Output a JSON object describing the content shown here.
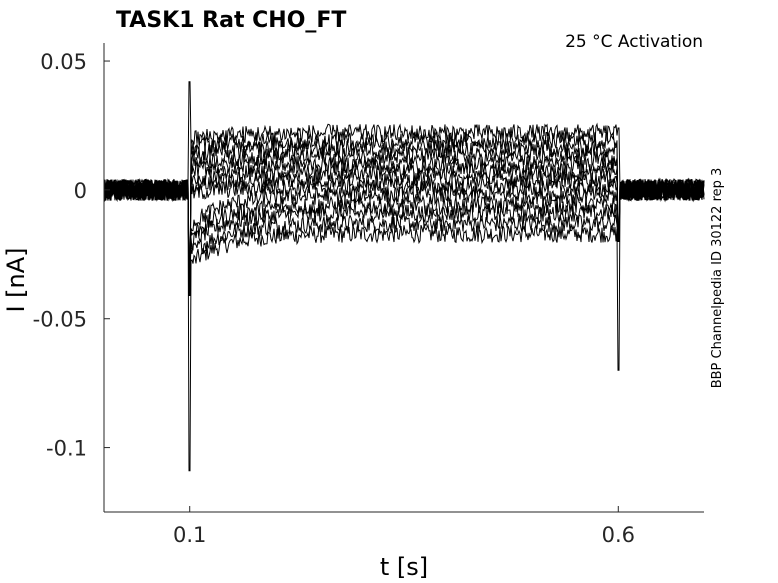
{
  "chart_data": {
    "type": "line",
    "title": "TASK1  Rat  CHO_FT",
    "annotation": "25 °C  Activation",
    "side_label": "BBP Channelpedia ID 30122 rep 3",
    "xlabel": "t [s]",
    "ylabel": "I [nA]",
    "xlim": [
      0.0,
      0.7
    ],
    "ylim": [
      -0.125,
      0.057
    ],
    "x_ticks": [
      0.1,
      0.6
    ],
    "x_tick_labels": [
      "0.1",
      "0.6"
    ],
    "y_ticks": [
      0.05,
      0,
      -0.05,
      -0.1
    ],
    "y_tick_labels": [
      "0.05",
      "0",
      "-0.05",
      "-0.1"
    ],
    "grid": false,
    "line_color": "#000000",
    "stimulus_on": 0.1,
    "stimulus_off": 0.6,
    "onset_spike_max": 0.042,
    "onset_spike_min": -0.109,
    "offset_spike_max": 0.024,
    "offset_spike_min": -0.07,
    "series": [
      {
        "steady_level": -0.017
      },
      {
        "steady_level": -0.013
      },
      {
        "steady_level": -0.009
      },
      {
        "steady_level": -0.006
      },
      {
        "steady_level": -0.002
      },
      {
        "steady_level": 0.001
      },
      {
        "steady_level": 0.004
      },
      {
        "steady_level": 0.007
      },
      {
        "steady_level": 0.01
      },
      {
        "steady_level": 0.013
      },
      {
        "steady_level": 0.016
      },
      {
        "steady_level": 0.019
      },
      {
        "steady_level": 0.022
      }
    ]
  }
}
